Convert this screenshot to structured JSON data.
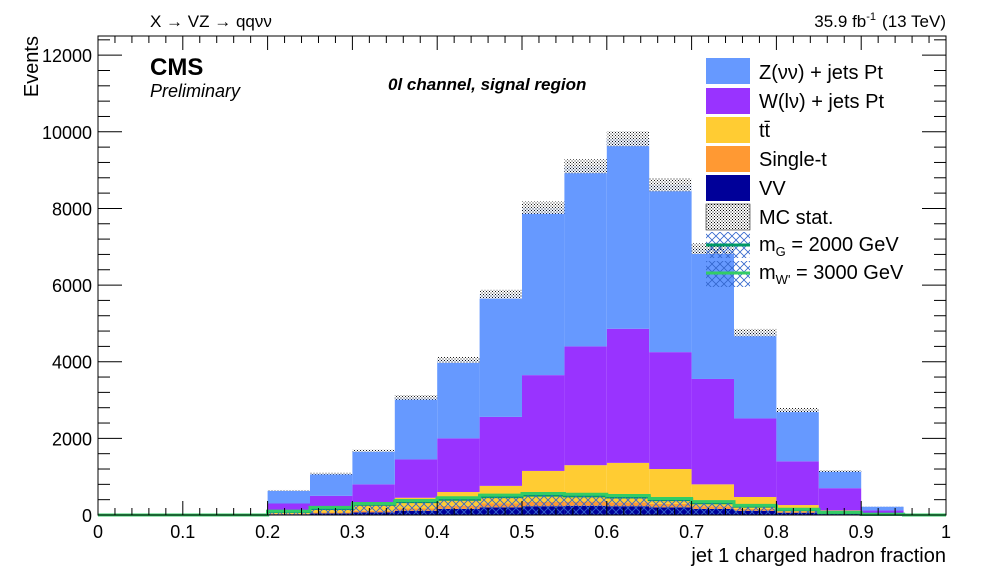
{
  "header": {
    "process": "X → VZ → qqνν",
    "lumi_value": "35.9 fb",
    "lumi_exp": "-1",
    "energy": "(13 TeV)"
  },
  "labels": {
    "cms": "CMS",
    "preliminary": "Preliminary",
    "channel": "0l channel, signal region"
  },
  "chart_data": {
    "type": "bar",
    "subtype": "stacked-histogram",
    "xlabel": "jet 1 charged hadron fraction",
    "ylabel": "Events",
    "xlim": [
      0,
      1
    ],
    "ylim": [
      0,
      12500
    ],
    "x_ticks": [
      "0",
      "0.1",
      "0.2",
      "0.3",
      "0.4",
      "0.5",
      "0.6",
      "0.7",
      "0.8",
      "0.9",
      "1"
    ],
    "y_ticks": [
      "0",
      "2000",
      "4000",
      "6000",
      "8000",
      "10000",
      "12000"
    ],
    "bin_edges": [
      0.0,
      0.05,
      0.1,
      0.15,
      0.2,
      0.25,
      0.3,
      0.35,
      0.4,
      0.45,
      0.5,
      0.55,
      0.6,
      0.65,
      0.7,
      0.75,
      0.8,
      0.85,
      0.9,
      0.95,
      1.0
    ],
    "series": [
      {
        "name": "VV",
        "color": "#000099",
        "values": [
          0,
          0,
          0,
          0,
          20,
          40,
          70,
          110,
          160,
          200,
          230,
          240,
          230,
          200,
          160,
          110,
          60,
          25,
          5,
          0
        ]
      },
      {
        "name": "Single-t",
        "color": "#ff9933",
        "values": [
          0,
          0,
          0,
          0,
          10,
          25,
          40,
          60,
          80,
          100,
          110,
          110,
          100,
          90,
          70,
          50,
          30,
          15,
          5,
          0
        ]
      },
      {
        "name": "tt̄",
        "color": "#ffcc33",
        "values": [
          0,
          0,
          0,
          0,
          70,
          135,
          190,
          280,
          360,
          460,
          810,
          950,
          1030,
          910,
          570,
          310,
          170,
          80,
          30,
          0
        ]
      },
      {
        "name": "W(lν) + jets Pt",
        "color": "#9933ff",
        "values": [
          0,
          0,
          0,
          0,
          200,
          300,
          500,
          1000,
          1400,
          1800,
          2500,
          3100,
          3500,
          3050,
          2750,
          2050,
          1140,
          580,
          80,
          0
        ]
      },
      {
        "name": "Z(νν) + jets Pt",
        "color": "#6699ff",
        "values": [
          0,
          0,
          0,
          0,
          340,
          580,
          880,
          1620,
          2050,
          3200,
          4370,
          4700,
          4960,
          4370,
          3400,
          2240,
          1340,
          450,
          100,
          0
        ]
      }
    ],
    "mc_stat": {
      "name": "MC stat.",
      "rel_error": 0.02
    },
    "signals": [
      {
        "name": "m_G = 2000 GeV",
        "label_main": "m",
        "label_sub": "G",
        "label_rest": " = 2000 GeV",
        "color": "#009966",
        "values": [
          0,
          0,
          0,
          0,
          90,
          170,
          280,
          350,
          410,
          480,
          520,
          500,
          470,
          400,
          320,
          230,
          140,
          60,
          15,
          0
        ]
      },
      {
        "name": "m_W' = 3000 GeV",
        "label_main": "m",
        "label_sub": "W'",
        "label_rest": " = 3000 GeV",
        "color": "#33cc66",
        "values": [
          0,
          0,
          0,
          0,
          100,
          200,
          300,
          380,
          450,
          520,
          560,
          540,
          510,
          430,
          350,
          250,
          150,
          70,
          20,
          0
        ]
      }
    ],
    "legend": {
      "position": "top-right",
      "entries": [
        "Z(νν) + jets Pt",
        "W(lν) + jets Pt",
        "tt̄",
        "Single-t",
        "VV",
        "MC stat.",
        "m_G = 2000 GeV",
        "m_W' = 3000 GeV"
      ]
    },
    "grid": false
  }
}
